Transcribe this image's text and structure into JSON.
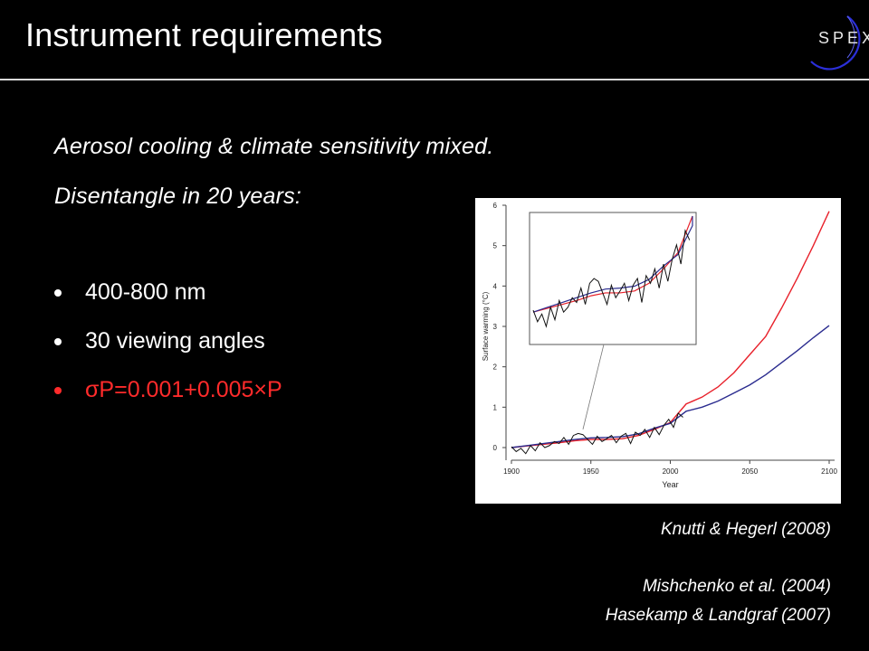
{
  "slide": {
    "title": "Instrument requirements",
    "logo_text": "SPEX",
    "subtitle_1": "Aerosol cooling & climate sensitivity mixed.",
    "subtitle_2": "Disentangle in 20 years:",
    "bullets": [
      {
        "text": "400-800 nm",
        "color": "#ffffff"
      },
      {
        "text": "30 viewing angles",
        "color": "#ffffff"
      },
      {
        "text": "σP=0.001+0.005×P",
        "color": "#ff2b2b"
      }
    ],
    "references": [
      "Knutti & Hegerl (2008)",
      "Mishchenko et al. (2004)",
      "Hasekamp & Landgraf (2007)"
    ]
  },
  "chart_data": {
    "type": "line",
    "xlabel": "Year",
    "ylabel": "Surface warming (°C)",
    "xlim": [
      1900,
      2100
    ],
    "ylim": [
      0,
      6
    ],
    "xticks": [
      1900,
      1950,
      2000,
      2050,
      2100
    ],
    "yticks": [
      0,
      1,
      2,
      3,
      4,
      5,
      6
    ],
    "colors": {
      "red": "#e8202a",
      "blue": "#2b2c8f",
      "black": "#111111"
    },
    "series": [
      {
        "color": "#e8202a",
        "x": [
          1900,
          1910,
          1920,
          1930,
          1940,
          1950,
          1960,
          1970,
          1980,
          1990,
          2000,
          2010,
          2020,
          2030,
          2040,
          2050,
          2060,
          2070,
          2080,
          2090,
          2100
        ],
        "y": [
          0.0,
          0.04,
          0.08,
          0.12,
          0.17,
          0.2,
          0.2,
          0.22,
          0.3,
          0.45,
          0.62,
          1.08,
          1.25,
          1.5,
          1.85,
          2.3,
          2.75,
          3.45,
          4.2,
          5.0,
          5.85
        ]
      },
      {
        "color": "#2b2c8f",
        "x": [
          1900,
          1910,
          1920,
          1930,
          1940,
          1950,
          1960,
          1970,
          1980,
          1990,
          2000,
          2010,
          2020,
          2030,
          2040,
          2050,
          2060,
          2070,
          2080,
          2090,
          2100
        ],
        "y": [
          0.0,
          0.05,
          0.1,
          0.15,
          0.2,
          0.24,
          0.25,
          0.27,
          0.34,
          0.48,
          0.6,
          0.9,
          1.0,
          1.15,
          1.35,
          1.55,
          1.8,
          2.1,
          2.4,
          2.72,
          3.02
        ]
      },
      {
        "color": "#111111",
        "x": [
          1900,
          1903,
          1906,
          1909,
          1912,
          1915,
          1918,
          1921,
          1924,
          1927,
          1930,
          1933,
          1936,
          1939,
          1942,
          1945,
          1948,
          1951,
          1954,
          1957,
          1960,
          1963,
          1966,
          1969,
          1972,
          1975,
          1978,
          1981,
          1984,
          1987,
          1990,
          1993,
          1996,
          1999,
          2002,
          2005,
          2008
        ],
        "y": [
          0.02,
          -0.1,
          -0.02,
          -0.15,
          0.05,
          -0.08,
          0.12,
          0.0,
          0.05,
          0.15,
          0.1,
          0.25,
          0.08,
          0.3,
          0.35,
          0.32,
          0.2,
          0.08,
          0.28,
          0.15,
          0.22,
          0.3,
          0.12,
          0.28,
          0.35,
          0.1,
          0.38,
          0.3,
          0.45,
          0.25,
          0.5,
          0.32,
          0.55,
          0.7,
          0.5,
          0.85,
          0.75
        ]
      }
    ],
    "inset": {
      "xlim": [
        1900,
        2010
      ],
      "ylim": [
        -0.3,
        1.0
      ]
    }
  }
}
